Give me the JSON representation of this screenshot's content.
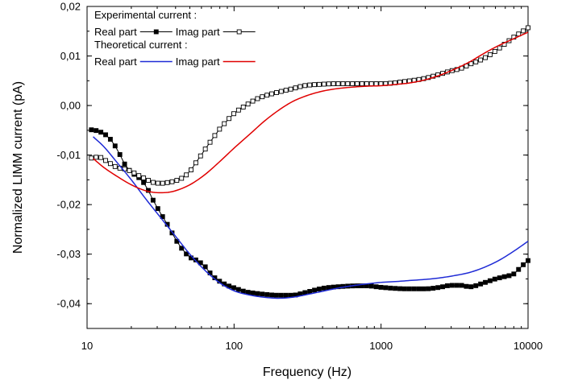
{
  "chart_data": {
    "type": "line",
    "xlabel": "Frequency (Hz)",
    "ylabel": "Normalized LIMM current (pA)",
    "x_scale": "log",
    "xlim": [
      10,
      10000
    ],
    "ylim": [
      -0.045,
      0.02
    ],
    "x_ticks": [
      {
        "value": 10,
        "label": "10"
      },
      {
        "value": 100,
        "label": "100"
      },
      {
        "value": 1000,
        "label": "1000"
      },
      {
        "value": 10000,
        "label": "10000"
      }
    ],
    "y_ticks": [
      {
        "value": 0.02,
        "label": "0,02"
      },
      {
        "value": 0.01,
        "label": "0,01"
      },
      {
        "value": 0.0,
        "label": "0,00"
      },
      {
        "value": -0.01,
        "label": "-0,01"
      },
      {
        "value": -0.02,
        "label": "-0,02"
      },
      {
        "value": -0.03,
        "label": "-0,03"
      },
      {
        "value": -0.04,
        "label": "-0,04"
      }
    ],
    "grid": false,
    "legend": {
      "placement": "top-left",
      "groups": [
        {
          "heading": "Experimental current :",
          "entries": [
            {
              "series": 0,
              "label": "Real part"
            },
            {
              "series": 1,
              "label": "Imag part"
            }
          ]
        },
        {
          "heading": "Theoretical current :",
          "entries": [
            {
              "series": 2,
              "label": "Real part"
            },
            {
              "series": 3,
              "label": "Imag part"
            }
          ]
        }
      ]
    },
    "series": [
      {
        "name": "Real part",
        "group": "Experimental current",
        "color": "#000000",
        "marker": "filled-square",
        "anchors": [
          [
            10.7,
            -0.0049
          ],
          [
            12,
            -0.0052
          ],
          [
            14,
            -0.0064
          ],
          [
            16,
            -0.0088
          ],
          [
            18,
            -0.0118
          ],
          [
            20,
            -0.0135
          ],
          [
            22,
            -0.0143
          ],
          [
            25,
            -0.0161
          ],
          [
            28,
            -0.019
          ],
          [
            32,
            -0.022
          ],
          [
            36,
            -0.0245
          ],
          [
            40,
            -0.027
          ],
          [
            45,
            -0.0292
          ],
          [
            50,
            -0.0306
          ],
          [
            56,
            -0.0313
          ],
          [
            63,
            -0.0324
          ],
          [
            71,
            -0.0343
          ],
          [
            80,
            -0.0355
          ],
          [
            90,
            -0.0363
          ],
          [
            100,
            -0.0368
          ],
          [
            120,
            -0.0376
          ],
          [
            140,
            -0.0379
          ],
          [
            160,
            -0.0381
          ],
          [
            200,
            -0.0383
          ],
          [
            250,
            -0.0383
          ],
          [
            300,
            -0.0378
          ],
          [
            400,
            -0.0369
          ],
          [
            500,
            -0.0366
          ],
          [
            700,
            -0.0364
          ],
          [
            800,
            -0.0364
          ],
          [
            1000,
            -0.0367
          ],
          [
            1500,
            -0.037
          ],
          [
            2000,
            -0.037
          ],
          [
            2500,
            -0.0367
          ],
          [
            3000,
            -0.0363
          ],
          [
            3500,
            -0.0363
          ],
          [
            4000,
            -0.0366
          ],
          [
            5000,
            -0.0358
          ],
          [
            6000,
            -0.035
          ],
          [
            7000,
            -0.0345
          ],
          [
            8000,
            -0.034
          ],
          [
            9000,
            -0.0325
          ],
          [
            10000,
            -0.0313
          ]
        ],
        "n_points": 93
      },
      {
        "name": "Imag part",
        "group": "Experimental current",
        "color": "#000000",
        "marker": "open-square",
        "anchors": [
          [
            10.7,
            -0.0106
          ],
          [
            12,
            -0.0104
          ],
          [
            14,
            -0.0115
          ],
          [
            16,
            -0.0125
          ],
          [
            18,
            -0.0128
          ],
          [
            20,
            -0.0133
          ],
          [
            22,
            -0.014
          ],
          [
            25,
            -0.0148
          ],
          [
            28,
            -0.0155
          ],
          [
            32,
            -0.0157
          ],
          [
            36,
            -0.0155
          ],
          [
            40,
            -0.0152
          ],
          [
            45,
            -0.0145
          ],
          [
            50,
            -0.0133
          ],
          [
            56,
            -0.0112
          ],
          [
            63,
            -0.009
          ],
          [
            71,
            -0.0068
          ],
          [
            80,
            -0.0047
          ],
          [
            90,
            -0.003
          ],
          [
            100,
            -0.0016
          ],
          [
            120,
            0.0
          ],
          [
            140,
            0.0012
          ],
          [
            160,
            0.0019
          ],
          [
            200,
            0.0027
          ],
          [
            250,
            0.0034
          ],
          [
            300,
            0.004
          ],
          [
            400,
            0.0043
          ],
          [
            500,
            0.0044
          ],
          [
            700,
            0.0044
          ],
          [
            1000,
            0.0044
          ],
          [
            1500,
            0.0049
          ],
          [
            2000,
            0.0055
          ],
          [
            2500,
            0.0063
          ],
          [
            3000,
            0.007
          ],
          [
            3500,
            0.0075
          ],
          [
            4000,
            0.0083
          ],
          [
            5000,
            0.0095
          ],
          [
            6000,
            0.011
          ],
          [
            7000,
            0.0125
          ],
          [
            8000,
            0.0138
          ],
          [
            9000,
            0.0148
          ],
          [
            10000,
            0.0157
          ]
        ],
        "n_points": 93
      },
      {
        "name": "Real part",
        "group": "Theoretical current",
        "color": "#1f2bd6",
        "marker": "none",
        "anchors": [
          [
            11,
            -0.0063
          ],
          [
            13,
            -0.0083
          ],
          [
            16,
            -0.0115
          ],
          [
            20,
            -0.015
          ],
          [
            25,
            -0.0188
          ],
          [
            32,
            -0.0228
          ],
          [
            40,
            -0.0264
          ],
          [
            50,
            -0.03
          ],
          [
            63,
            -0.0332
          ],
          [
            80,
            -0.0358
          ],
          [
            100,
            -0.0374
          ],
          [
            130,
            -0.0383
          ],
          [
            160,
            -0.0387
          ],
          [
            200,
            -0.0389
          ],
          [
            250,
            -0.0387
          ],
          [
            320,
            -0.0381
          ],
          [
            400,
            -0.0375
          ],
          [
            500,
            -0.0369
          ],
          [
            630,
            -0.0364
          ],
          [
            800,
            -0.036
          ],
          [
            1000,
            -0.0357
          ],
          [
            1300,
            -0.0355
          ],
          [
            1600,
            -0.0353
          ],
          [
            2000,
            -0.0351
          ],
          [
            2500,
            -0.0348
          ],
          [
            3200,
            -0.0343
          ],
          [
            4000,
            -0.0337
          ],
          [
            5000,
            -0.0327
          ],
          [
            6300,
            -0.0313
          ],
          [
            8000,
            -0.0294
          ],
          [
            10000,
            -0.0274
          ]
        ],
        "n_points": 240
      },
      {
        "name": "Imag part",
        "group": "Theoretical current",
        "color": "#e00000",
        "marker": "none",
        "anchors": [
          [
            11,
            -0.0107
          ],
          [
            13,
            -0.0125
          ],
          [
            16,
            -0.0143
          ],
          [
            20,
            -0.016
          ],
          [
            25,
            -0.0172
          ],
          [
            28,
            -0.0175
          ],
          [
            32,
            -0.0176
          ],
          [
            36,
            -0.0175
          ],
          [
            40,
            -0.0172
          ],
          [
            50,
            -0.016
          ],
          [
            63,
            -0.014
          ],
          [
            80,
            -0.0113
          ],
          [
            100,
            -0.0086
          ],
          [
            130,
            -0.0056
          ],
          [
            160,
            -0.0032
          ],
          [
            200,
            -0.001
          ],
          [
            250,
            0.0008
          ],
          [
            320,
            0.0021
          ],
          [
            400,
            0.0029
          ],
          [
            500,
            0.0034
          ],
          [
            630,
            0.0037
          ],
          [
            800,
            0.0039
          ],
          [
            1000,
            0.004
          ],
          [
            1300,
            0.0043
          ],
          [
            1600,
            0.0046
          ],
          [
            2000,
            0.0052
          ],
          [
            2500,
            0.0061
          ],
          [
            3200,
            0.0074
          ],
          [
            4000,
            0.0088
          ],
          [
            5000,
            0.0105
          ],
          [
            6300,
            0.0121
          ],
          [
            8000,
            0.0135
          ],
          [
            10000,
            0.0148
          ]
        ],
        "n_points": 240
      }
    ]
  }
}
